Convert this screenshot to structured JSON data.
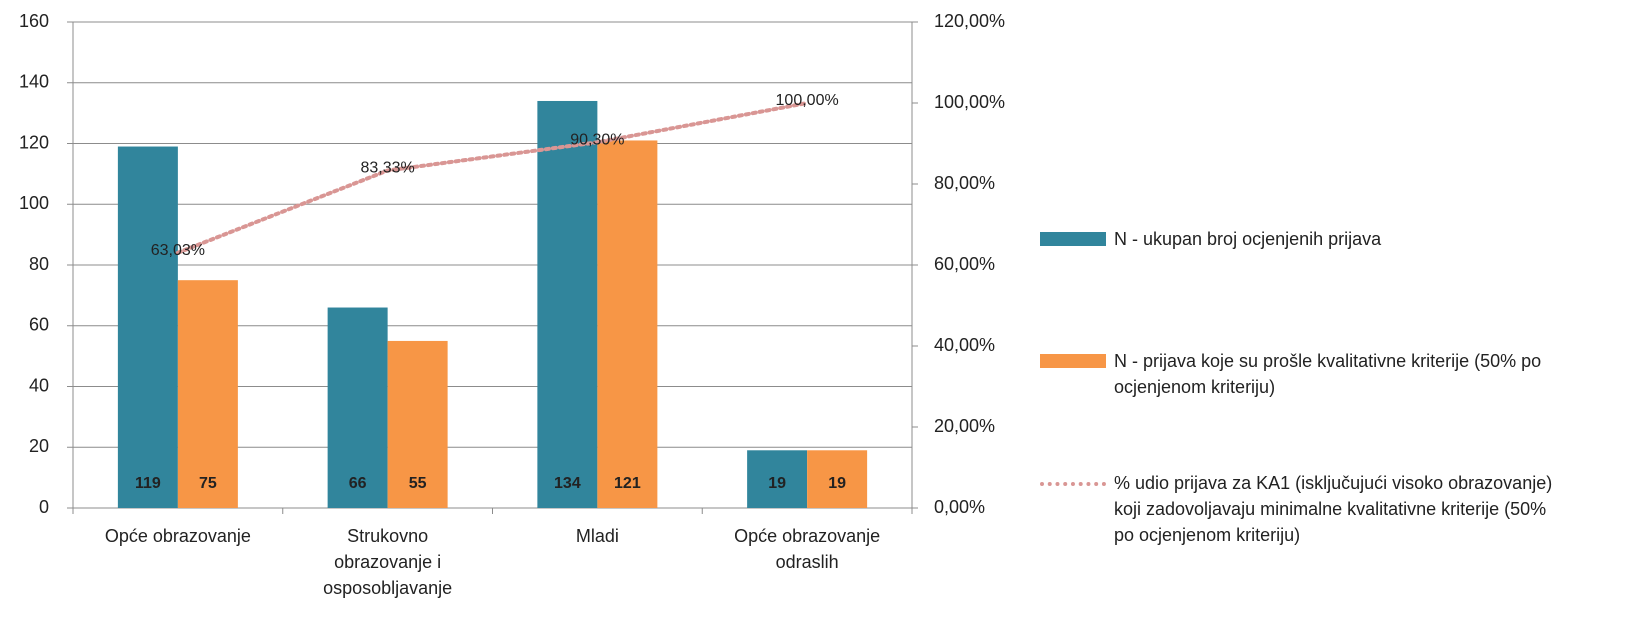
{
  "chart_data": {
    "type": "bar",
    "categories": [
      "Opće obrazovanje",
      "Strukovno obrazovanje i osposobljavanje",
      "Mladi",
      "Opće obrazovanje odraslih"
    ],
    "series": [
      {
        "name": "N - ukupan broj ocjenjenih prijava",
        "color": "#31859c",
        "values": [
          119,
          66,
          134,
          19
        ]
      },
      {
        "name": "N - prijava koje su prošle kvalitativne kriterije (50% po ocjenjenom kriteriju)",
        "color": "#f79646",
        "values": [
          75,
          55,
          121,
          19
        ]
      },
      {
        "name": "% udio prijava za  KA1 (isključujući visoko obrazovanje)  koji zadovoljavaju minimalne kvalitativne kriterije  (50% po ocjenjenom kriteriju)",
        "color": "#d99694",
        "type": "line",
        "axis": "y2",
        "values": [
          63.03,
          83.33,
          90.3,
          100
        ],
        "value_labels": [
          "63,03%",
          "83,33%",
          "90,30%",
          "100,00%"
        ]
      }
    ],
    "ylim": [
      0,
      160
    ],
    "yticks": [
      0,
      20,
      40,
      60,
      80,
      100,
      120,
      140,
      160
    ],
    "y2lim": [
      0,
      120
    ],
    "y2ticks": [
      {
        "value": 0,
        "label": "0,00%"
      },
      {
        "value": 20,
        "label": "20,00%"
      },
      {
        "value": 40,
        "label": "40,00%"
      },
      {
        "value": 60,
        "label": "60,00%"
      },
      {
        "value": 80,
        "label": "80,00%"
      },
      {
        "value": 100,
        "label": "100,00%"
      },
      {
        "value": 120,
        "label": "120,00%"
      }
    ],
    "grid": true,
    "legend": "right"
  }
}
